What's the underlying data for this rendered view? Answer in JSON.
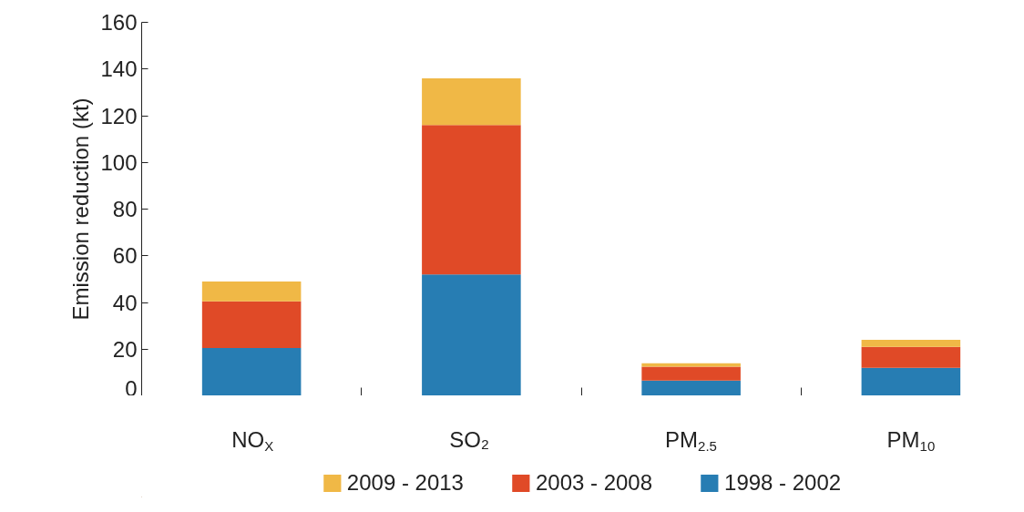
{
  "chart_data": {
    "type": "bar",
    "stacked": true,
    "ylabel": "Emission reduction (kt)",
    "categories": [
      "NO$_{X}$",
      "SO₂",
      "PM$_{2.5}$",
      "PM$_{10}$"
    ],
    "series": [
      {
        "name": "1998 - 2002",
        "color": "#277db3",
        "values": [
          20.5,
          52,
          6.5,
          12
        ]
      },
      {
        "name": "2003 - 2008",
        "color": "#e04a27",
        "values": [
          20,
          64,
          6,
          9
        ]
      },
      {
        "name": "2009 - 2013",
        "color": "#f0b846",
        "values": [
          8.5,
          20,
          1.5,
          3
        ]
      }
    ],
    "ylim": [
      0,
      160
    ],
    "yticks": [
      0,
      20,
      40,
      60,
      80,
      100,
      120,
      140,
      160
    ],
    "grid": false,
    "legend": "bottom"
  }
}
